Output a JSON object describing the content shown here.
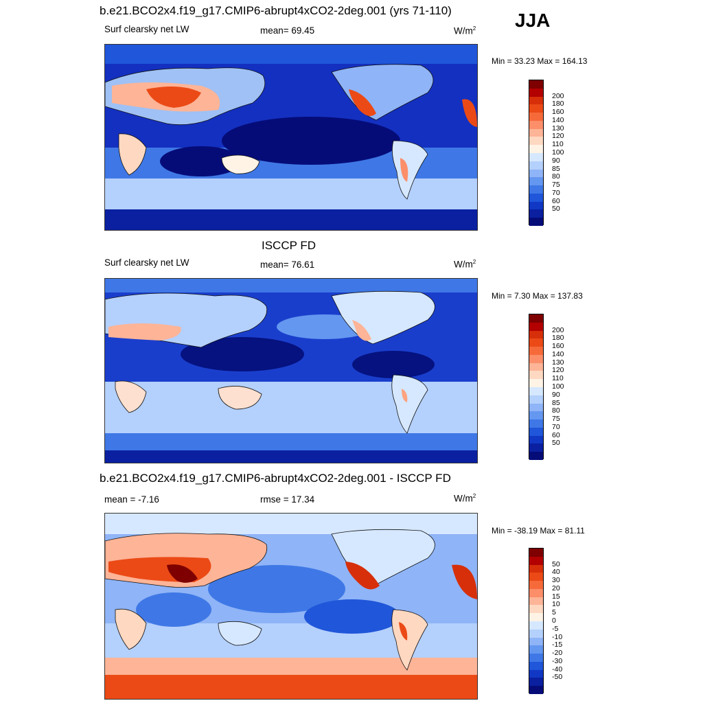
{
  "season": "JJA",
  "panels": [
    {
      "title": "b.e21.BCO2x4.f19_g17.CMIP6-abrupt4xCO2-2deg.001 (yrs 71-110)",
      "left_label": "Surf clearsky net LW",
      "center_label": "mean=  69.45",
      "units": "W/m",
      "units_sup": "2",
      "minmax": "Min =  33.23 Max = 164.13",
      "colorbar": {
        "colors": [
          "#7f0000",
          "#b30000",
          "#d62f0a",
          "#eb4a16",
          "#f66a3a",
          "#fc8e6a",
          "#fdb497",
          "#fed8c1",
          "#fff3e6",
          "#d6e8ff",
          "#b4d0fc",
          "#8fb4f7",
          "#6497f0",
          "#3f78e6",
          "#2056d9",
          "#1038c4",
          "#0a20a0",
          "#050c78"
        ],
        "labels": [
          "200",
          "180",
          "160",
          "140",
          "130",
          "120",
          "110",
          "100",
          "90",
          "85",
          "80",
          "75",
          "70",
          "60",
          "50"
        ]
      },
      "map_colors": {
        "ocean": "#1430c0",
        "land": "#9fc1f5",
        "hot": "#ef5a2a",
        "warm": "#fdc1a1",
        "cold": "#050c78"
      }
    },
    {
      "title": "ISCCP FD",
      "left_label": "Surf clearsky net LW",
      "center_label": "mean=  76.61",
      "units": "W/m",
      "units_sup": "2",
      "minmax": "Min =   7.30 Max = 137.83",
      "colorbar": {
        "colors": [
          "#7f0000",
          "#b30000",
          "#d62f0a",
          "#eb4a16",
          "#f66a3a",
          "#fc8e6a",
          "#fdb497",
          "#fed8c1",
          "#fff3e6",
          "#d6e8ff",
          "#b4d0fc",
          "#8fb4f7",
          "#6497f0",
          "#3f78e6",
          "#2056d9",
          "#1038c4",
          "#0a20a0",
          "#050c78"
        ],
        "labels": [
          "200",
          "180",
          "160",
          "140",
          "130",
          "120",
          "110",
          "100",
          "90",
          "85",
          "80",
          "75",
          "70",
          "60",
          "50"
        ]
      },
      "map_colors": {
        "ocean": "#1a3ecc",
        "land": "#b4d0fc",
        "hot": "#fca37f",
        "warm": "#fde0cf",
        "cold": "#05127f"
      }
    },
    {
      "title": "b.e21.BCO2x4.f19_g17.CMIP6-abrupt4xCO2-2deg.001 - ISCCP FD",
      "left_label": "mean =  -7.16",
      "center_label": "rmse =  17.34",
      "units": "W/m",
      "units_sup": "2",
      "minmax": "Min = -38.19 Max =  81.11",
      "colorbar": {
        "colors": [
          "#7f0000",
          "#b30000",
          "#d62f0a",
          "#eb4a16",
          "#f66a3a",
          "#fc8e6a",
          "#fdb497",
          "#fed8c1",
          "#fff3e6",
          "#d6e8ff",
          "#b4d0fc",
          "#8fb4f7",
          "#6497f0",
          "#3f78e6",
          "#2056d9",
          "#1038c4",
          "#0a20a0",
          "#050c78"
        ],
        "labels": [
          "50",
          "40",
          "30",
          "20",
          "15",
          "10",
          "5",
          "0",
          "-5",
          "-10",
          "-15",
          "-20",
          "-30",
          "-40",
          "-50"
        ]
      },
      "map_colors": {
        "ocean": "#8fb4f7",
        "land": "#d6e8ff",
        "hot": "#d62f0a",
        "warm": "#fdb497",
        "cold": "#2056d9"
      }
    }
  ]
}
